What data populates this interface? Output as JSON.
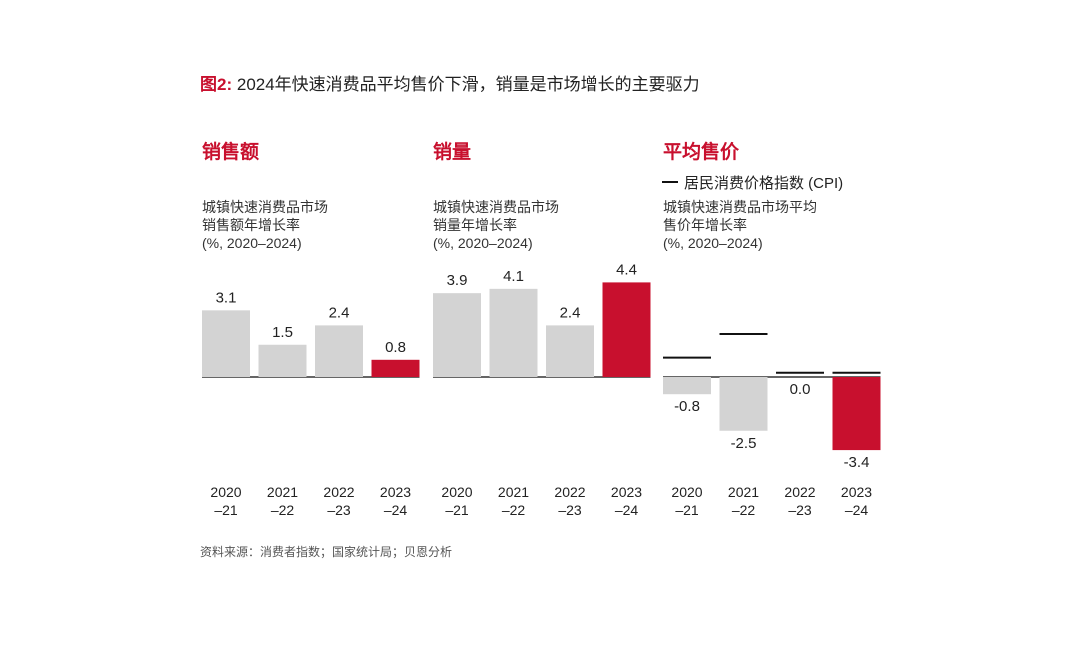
{
  "figure": {
    "number": "图2:",
    "title": "2024年快速消费品平均售价下滑，销量是市场增长的主要驱力"
  },
  "source": "资料来源：消费者指数；国家统计局；贝恩分析",
  "colors": {
    "highlight": "#c8102e",
    "default_bar": "#d3d3d3",
    "cpi_line": "#111111"
  },
  "chart_data": [
    {
      "type": "bar",
      "title": "销售额",
      "subtitle": [
        "城镇快速消费品市场",
        "销售额年增长率",
        "(%, 2020–2024)"
      ],
      "categories": [
        [
          "2020",
          "–21"
        ],
        [
          "2021",
          "–22"
        ],
        [
          "2022",
          "–23"
        ],
        [
          "2023",
          "–24"
        ]
      ],
      "values": [
        3.1,
        1.5,
        2.4,
        0.8
      ],
      "value_labels": [
        "3.1",
        "1.5",
        "2.4",
        "0.8"
      ],
      "highlight_index": 3
    },
    {
      "type": "bar",
      "title": "销量",
      "subtitle": [
        "城镇快速消费品市场",
        "销量年增长率",
        "(%, 2020–2024)"
      ],
      "categories": [
        [
          "2020",
          "–21"
        ],
        [
          "2021",
          "–22"
        ],
        [
          "2022",
          "–23"
        ],
        [
          "2023",
          "–24"
        ]
      ],
      "values": [
        3.9,
        4.1,
        2.4,
        4.4
      ],
      "value_labels": [
        "3.9",
        "4.1",
        "2.4",
        "4.4"
      ],
      "highlight_index": 3
    },
    {
      "type": "bar",
      "title": "平均售价",
      "subtitle": [
        "城镇快速消费品市场平均",
        "售价年增长率",
        "(%, 2020–2024)"
      ],
      "legend": "居民消费价格指数 (CPI)",
      "categories": [
        [
          "2020",
          "–21"
        ],
        [
          "2021",
          "–22"
        ],
        [
          "2022",
          "–23"
        ],
        [
          "2023",
          "–24"
        ]
      ],
      "values": [
        -0.8,
        -2.5,
        0.0,
        -3.4
      ],
      "value_labels": [
        "-0.8",
        "-2.5",
        "0.0",
        "-3.4"
      ],
      "cpi_values": [
        0.9,
        2.0,
        0.2,
        0.2
      ],
      "highlight_index": 3
    }
  ]
}
